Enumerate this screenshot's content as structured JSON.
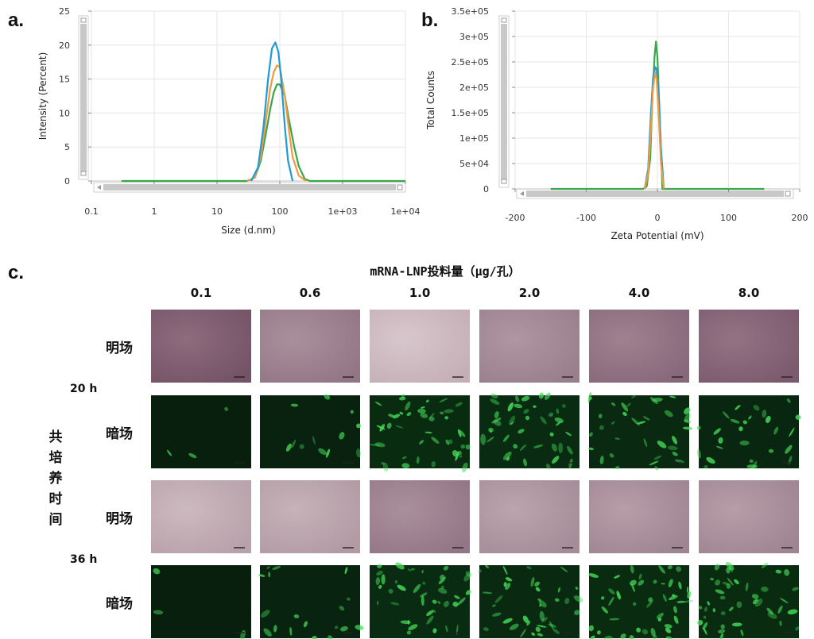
{
  "panels": {
    "a": "a.",
    "b": "b.",
    "c": "c."
  },
  "colors": {
    "blue": "#1e9bd7",
    "orange": "#f39a3c",
    "green": "#3aa54a"
  },
  "chart_data": [
    {
      "type": "line",
      "xlabel": "Size (d.nm)",
      "ylabel": "Intensity (Percent)",
      "xscale": "log",
      "xlim": [
        0.1,
        10000
      ],
      "ylim": [
        0,
        25
      ],
      "xticks": [
        "0.1",
        "1",
        "10",
        "100",
        "1e+03",
        "1e+04"
      ],
      "yticks": [
        "0",
        "5",
        "10",
        "15",
        "20",
        "25"
      ],
      "grid": true,
      "series": [
        {
          "color": "#3aa54a",
          "x": [
            0.3,
            30,
            40,
            50,
            60,
            70,
            80,
            90,
            100,
            120,
            140,
            170,
            200,
            250,
            300,
            10000
          ],
          "y": [
            0,
            0,
            0.5,
            3,
            7,
            10.5,
            13,
            14.2,
            14.2,
            12.5,
            9,
            5,
            2.2,
            0.3,
            0,
            0
          ]
        },
        {
          "color": "#f39a3c",
          "x": [
            30,
            40,
            50,
            60,
            70,
            80,
            90,
            100,
            120,
            140,
            160,
            200,
            260
          ],
          "y": [
            0,
            0.5,
            3.5,
            9,
            13.5,
            16,
            17,
            16.8,
            12.5,
            7.5,
            3.5,
            0.8,
            0
          ]
        },
        {
          "color": "#1e9bd7",
          "x": [
            35,
            45,
            55,
            65,
            75,
            85,
            95,
            105,
            120,
            135,
            160
          ],
          "y": [
            0,
            2,
            8,
            15,
            19.5,
            20.4,
            19,
            15,
            8,
            3,
            0
          ]
        }
      ]
    },
    {
      "type": "line",
      "xlabel": "Zeta Potential (mV)",
      "ylabel": "Total Counts",
      "xlim": [
        -200,
        200
      ],
      "ylim": [
        0,
        350000
      ],
      "xticks": [
        "-200",
        "-100",
        "0",
        "100",
        "200"
      ],
      "yticks": [
        "0",
        "5e+04",
        "1e+05",
        "1.5e+05",
        "2e+05",
        "2.5e+05",
        "3e+05",
        "3.5e+05"
      ],
      "grid": true,
      "series": [
        {
          "color": "#3aa54a",
          "x": [
            -150,
            -20,
            -15,
            -10,
            -7,
            -4,
            -2,
            0,
            3,
            7,
            150
          ],
          "y": [
            0,
            0,
            5000,
            60000,
            180000,
            260000,
            290000,
            260000,
            150000,
            0,
            0
          ]
        },
        {
          "color": "#1e9bd7",
          "x": [
            -18,
            -13,
            -9,
            -6,
            -3,
            -1,
            2,
            5,
            9
          ],
          "y": [
            0,
            40000,
            150000,
            220000,
            240000,
            235000,
            180000,
            80000,
            0
          ]
        },
        {
          "color": "#f39a3c",
          "x": [
            -18,
            -13,
            -9,
            -6,
            -3,
            -1,
            2,
            5,
            9
          ],
          "y": [
            0,
            30000,
            120000,
            200000,
            230000,
            215000,
            140000,
            50000,
            0
          ]
        }
      ]
    }
  ],
  "figure_c": {
    "header": "mRNA-LNP投料量（μg/孔）",
    "columns": [
      "0.1",
      "0.6",
      "1.0",
      "2.0",
      "4.0",
      "8.0"
    ],
    "rows": [
      {
        "label": "明场",
        "kind": "bright",
        "levels": [
          0.2,
          0.45,
          0.85,
          0.5,
          0.35,
          0.25
        ]
      },
      {
        "label": "暗场",
        "kind": "dark",
        "levels": [
          0.05,
          0.2,
          0.75,
          0.7,
          0.6,
          0.45
        ]
      },
      {
        "label": "明场",
        "kind": "bright",
        "levels": [
          0.75,
          0.7,
          0.45,
          0.6,
          0.55,
          0.55
        ]
      },
      {
        "label": "暗场",
        "kind": "dark",
        "levels": [
          0.05,
          0.3,
          0.7,
          0.65,
          0.8,
          0.75
        ]
      }
    ],
    "times": [
      "20 h",
      "36 h"
    ],
    "side_label": "共培养时间"
  }
}
